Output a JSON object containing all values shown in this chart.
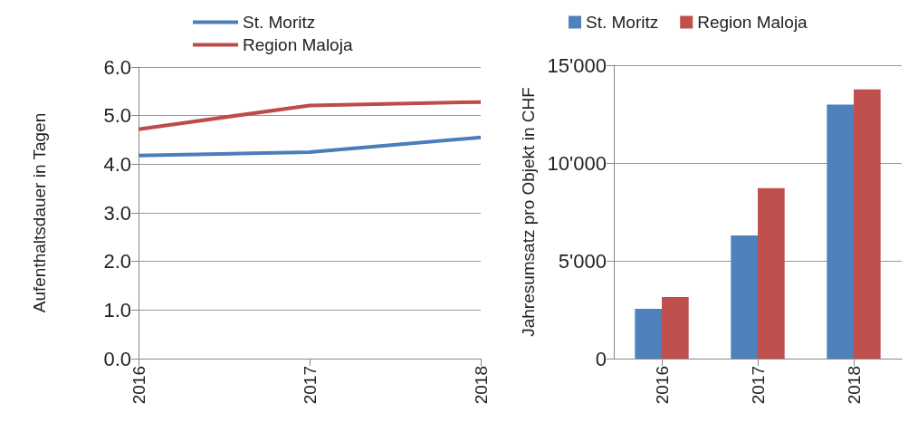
{
  "chart_data": [
    {
      "type": "line",
      "ylabel": "Aufenthaltsdauer in Tagen",
      "categories": [
        "2016",
        "2017",
        "2018"
      ],
      "series": [
        {
          "name": "St. Moritz",
          "color": "#4a7ebb",
          "values": [
            4.18,
            4.25,
            4.55
          ]
        },
        {
          "name": "Region Maloja",
          "color": "#be4b48",
          "values": [
            4.72,
            5.21,
            5.28
          ]
        }
      ],
      "ylim": [
        0,
        6
      ],
      "yticks": [
        {
          "value": 0,
          "label": "0.0"
        },
        {
          "value": 1,
          "label": "1.0"
        },
        {
          "value": 2,
          "label": "2.0"
        },
        {
          "value": 3,
          "label": "3.0"
        },
        {
          "value": 4,
          "label": "4.0"
        },
        {
          "value": 5,
          "label": "5.0"
        },
        {
          "value": 6,
          "label": "6.0"
        }
      ],
      "grid": "y",
      "legend": "top",
      "marker": "none"
    },
    {
      "type": "bar",
      "ylabel": "Jahresumsatz pro Objekt in CHF",
      "categories": [
        "2016",
        "2017",
        "2018"
      ],
      "series": [
        {
          "name": "St. Moritz",
          "color": "#4f81bd",
          "values": [
            2550,
            6300,
            12990
          ]
        },
        {
          "name": "Region Maloja",
          "color": "#c0504d",
          "values": [
            3150,
            8720,
            13760
          ]
        }
      ],
      "ylim": [
        0,
        15000
      ],
      "yticks": [
        0,
        {
          "value": 5000,
          "label": "5'000"
        },
        {
          "value": 10000,
          "label": "10'000"
        },
        {
          "value": 15000,
          "label": "15'000"
        }
      ],
      "grid": "y",
      "legend": "top"
    }
  ]
}
